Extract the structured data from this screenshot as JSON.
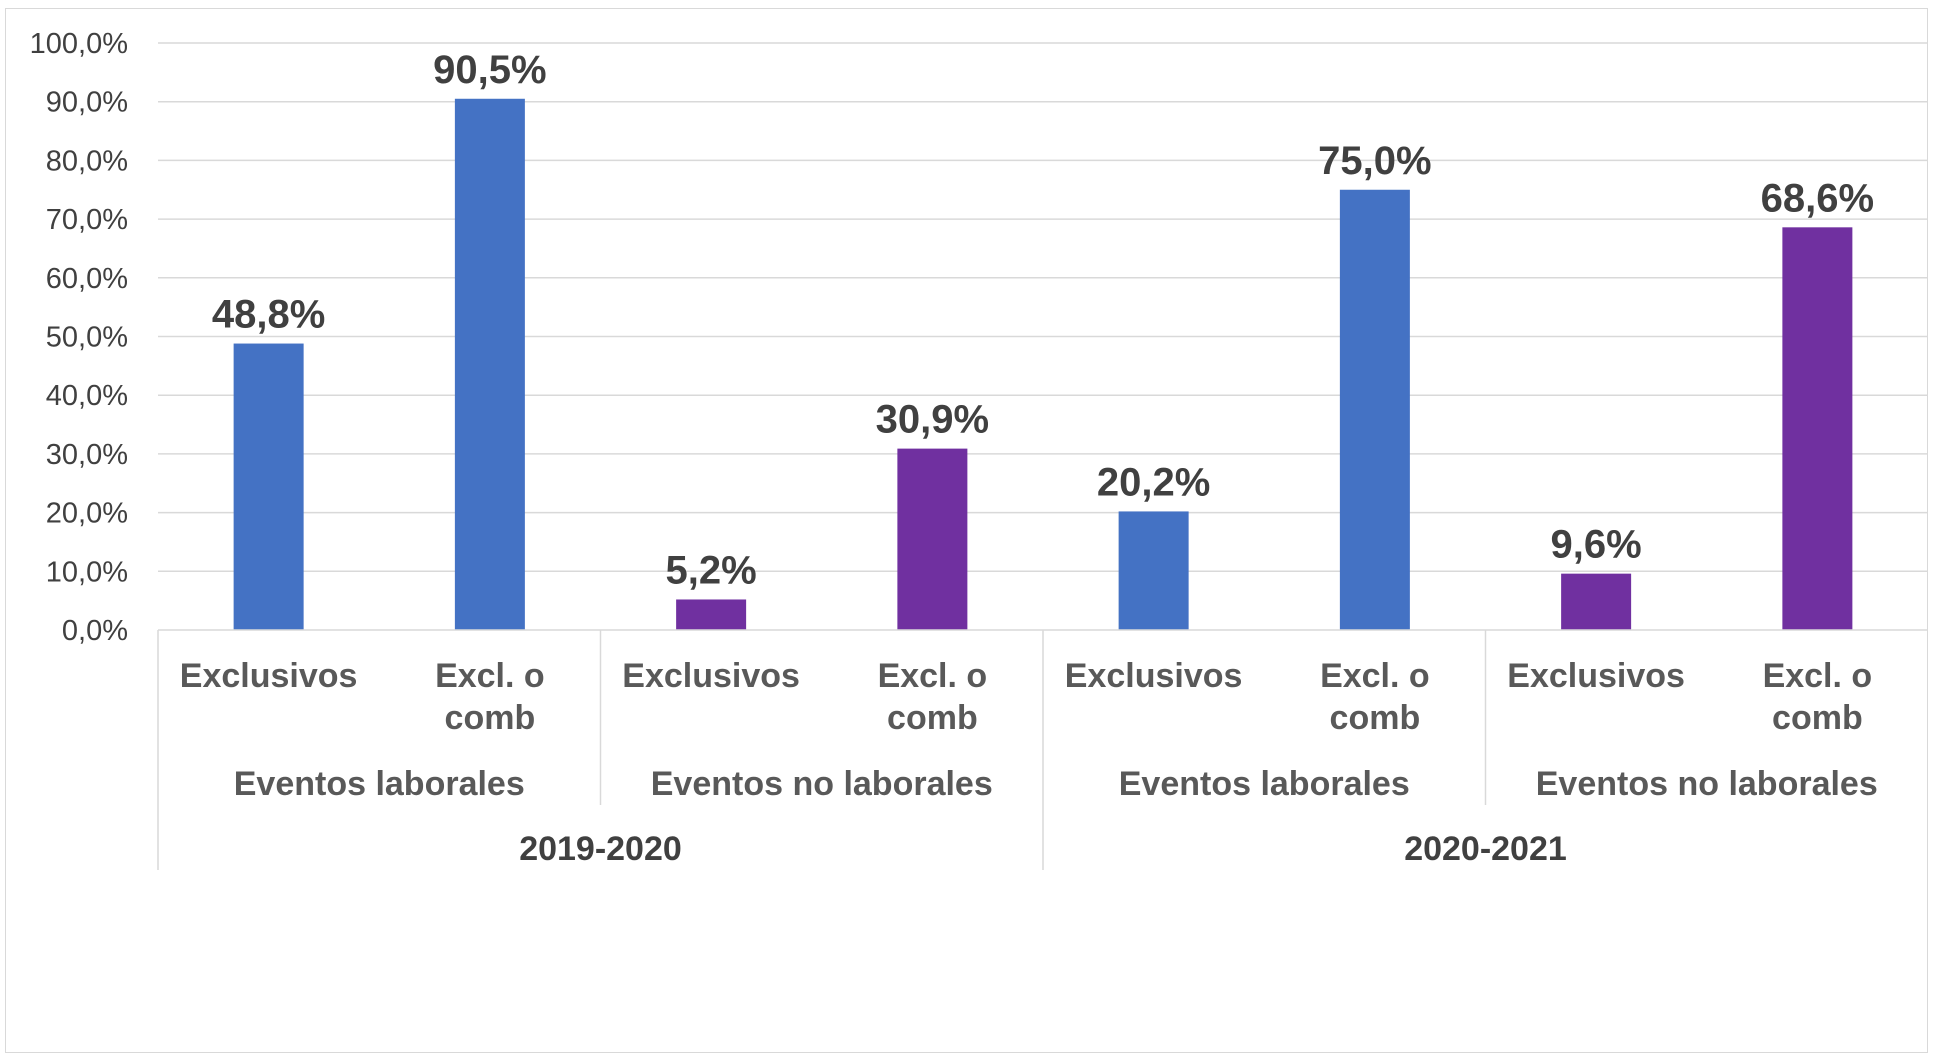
{
  "chart_data": {
    "type": "bar",
    "ylim": [
      0,
      100
    ],
    "yticks": [
      "0,0%",
      "10,0%",
      "20,0%",
      "30,0%",
      "40,0%",
      "50,0%",
      "60,0%",
      "70,0%",
      "80,0%",
      "90,0%",
      "100,0%"
    ],
    "categories": [
      {
        "label_lines": [
          "Exclusivos"
        ],
        "group": "Eventos laborales",
        "year": "2019-2020",
        "value": 48.8,
        "data_label": "48,8%",
        "color": "#4472c4"
      },
      {
        "label_lines": [
          "Excl. o",
          "comb"
        ],
        "group": "Eventos laborales",
        "year": "2019-2020",
        "value": 90.5,
        "data_label": "90,5%",
        "color": "#4472c4"
      },
      {
        "label_lines": [
          "Exclusivos"
        ],
        "group": "Eventos no laborales",
        "year": "2019-2020",
        "value": 5.2,
        "data_label": "5,2%",
        "color": "#7030a0"
      },
      {
        "label_lines": [
          "Excl. o",
          "comb"
        ],
        "group": "Eventos no laborales",
        "year": "2019-2020",
        "value": 30.9,
        "data_label": "30,9%",
        "color": "#7030a0"
      },
      {
        "label_lines": [
          "Exclusivos"
        ],
        "group": "Eventos laborales",
        "year": "2020-2021",
        "value": 20.2,
        "data_label": "20,2%",
        "color": "#4472c4"
      },
      {
        "label_lines": [
          "Excl. o",
          "comb"
        ],
        "group": "Eventos laborales",
        "year": "2020-2021",
        "value": 75.0,
        "data_label": "75,0%",
        "color": "#4472c4"
      },
      {
        "label_lines": [
          "Exclusivos"
        ],
        "group": "Eventos no laborales",
        "year": "2020-2021",
        "value": 9.6,
        "data_label": "9,6%",
        "color": "#7030a0"
      },
      {
        "label_lines": [
          "Excl. o",
          "comb"
        ],
        "group": "Eventos no laborales",
        "year": "2020-2021",
        "value": 68.6,
        "data_label": "68,6%",
        "color": "#7030a0"
      }
    ],
    "groups": [
      {
        "label": "Eventos laborales"
      },
      {
        "label": "Eventos no laborales"
      },
      {
        "label": "Eventos laborales"
      },
      {
        "label": "Eventos no laborales"
      }
    ],
    "years": [
      {
        "label": "2019-2020"
      },
      {
        "label": "2020-2021"
      }
    ],
    "grid": true,
    "legend": "none"
  }
}
